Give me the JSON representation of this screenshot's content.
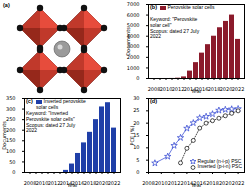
{
  "structure_panel": {
    "label": "(a)"
  },
  "chart_data": [
    {
      "type": "bar",
      "title": "(b)",
      "x_label": "Year",
      "y_label": "Documents",
      "categories": [
        2008,
        2009,
        2010,
        2011,
        2012,
        2013,
        2014,
        2015,
        2016,
        2017,
        2018,
        2019,
        2020,
        2021,
        2022
      ],
      "series": [
        {
          "name": "Perovskite solar cells",
          "color": "#8b1a2b",
          "values": [
            0,
            1,
            2,
            5,
            30,
            150,
            700,
            1500,
            2400,
            3200,
            4000,
            4800,
            5400,
            6000,
            3700
          ]
        }
      ],
      "annotations": [
        "Keyword: \"Perovskite solar cell\"",
        "Scopus: dated 27 July 2022"
      ],
      "xticks": [
        2008,
        2010,
        2012,
        2014,
        2016,
        2018,
        2020,
        2022
      ],
      "ylim": [
        0,
        7000
      ],
      "yticks": [
        0,
        1000,
        2000,
        3000,
        4000,
        5000,
        6000,
        7000
      ],
      "legend": "top-left"
    },
    {
      "type": "bar",
      "title": "(c)",
      "x_label": "Year",
      "y_label": "Documents",
      "categories": [
        2008,
        2009,
        2010,
        2011,
        2012,
        2013,
        2014,
        2015,
        2016,
        2017,
        2018,
        2019,
        2020,
        2021,
        2022
      ],
      "series": [
        {
          "name": "Inverted perovskite solar cells",
          "color": "#1f3fa8",
          "values": [
            0,
            0,
            0,
            0,
            0,
            0,
            10,
            40,
            90,
            140,
            190,
            250,
            310,
            330,
            210
          ]
        }
      ],
      "annotations": [
        "Keyword: \"Inverted Perovskite solar cells\"",
        "Scopus: dated 27 July 2022"
      ],
      "xticks": [
        2008,
        2010,
        2012,
        2014,
        2016,
        2018,
        2020,
        2022
      ],
      "ylim": [
        0,
        350
      ],
      "yticks": [
        0,
        50,
        100,
        150,
        200,
        250,
        300,
        350
      ],
      "legend": "top-left"
    },
    {
      "type": "line",
      "title": "(d)",
      "x_label": "Year",
      "y_label": "PCE (%)",
      "series": [
        {
          "name": "Regular (n-i-p) PSC",
          "color": "#2a3fd0",
          "marker": "star",
          "line_style": "solid",
          "x": [
            2009,
            2011,
            2012,
            2013,
            2014,
            2015,
            2016,
            2017,
            2018,
            2019,
            2020,
            2021,
            2022
          ],
          "values": [
            3.8,
            6.5,
            10.9,
            14.1,
            17.9,
            20.1,
            22.1,
            22.7,
            23.7,
            25.2,
            25.5,
            25.7,
            25.8
          ]
        },
        {
          "name": "Inverted (p-i-n) PSC",
          "color": "#000000",
          "marker": "circle",
          "line_style": "dotted",
          "x": [
            2013,
            2014,
            2015,
            2016,
            2017,
            2018,
            2019,
            2020,
            2021,
            2022
          ],
          "values": [
            3.9,
            9.8,
            13.0,
            18.0,
            20.0,
            21.0,
            22.0,
            23.0,
            24.0,
            25.0
          ]
        }
      ],
      "xlim": [
        2008,
        2023
      ],
      "xticks": [
        2008,
        2010,
        2012,
        2014,
        2016,
        2018,
        2020,
        2022
      ],
      "ylim": [
        0,
        30
      ],
      "yticks": [
        0,
        5,
        10,
        15,
        20,
        25,
        30
      ],
      "legend": "bottom-right"
    }
  ]
}
